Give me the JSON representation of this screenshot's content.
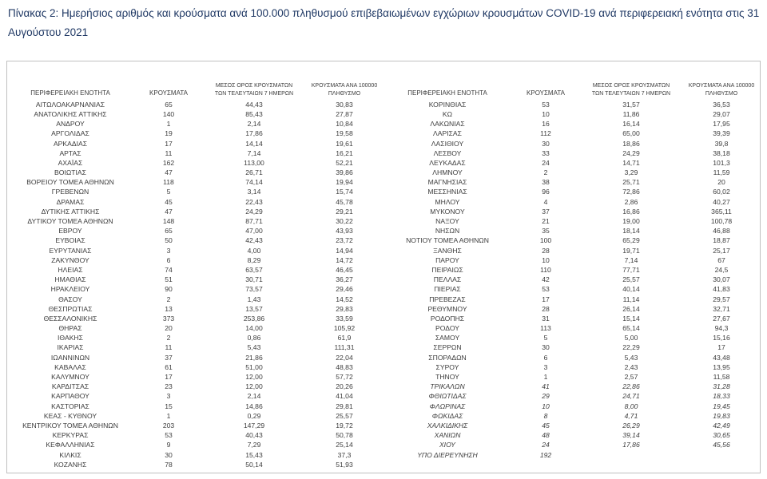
{
  "title": "Πίνακας 2: Ημερήσιος αριθμός και κρούσματα ανά 100.000 πληθυσμού επιβεβαιωμένων εγχώριων κρουσμάτων COVID-19 ανά περιφερειακή ενότητα στις 31 Αυγούστου 2021",
  "table": {
    "headers": {
      "region": "ΠΕΡΙΦΕΡΕΙΑΚΗ ΕΝΟΤΗΤΑ",
      "cases": "ΚΡΟΥΣΜΑΤΑ",
      "avg7_line1": "ΜΕΣΟΣ ΟΡΟΣ ΚΡΟΥΣΜΑΤΩΝ",
      "avg7_line2": "ΤΩΝ ΤΕΛΕΥΤΑΙΩΝ 7 ΗΜΕΡΩΝ",
      "per100k_line1": "ΚΡΟΥΣΜΑΤΑ ΑΝΑ 100000",
      "per100k_line2": "ΠΛΗΘΥΣΜΟ"
    },
    "left_rows": [
      {
        "region": "ΑΙΤΩΛΟΑΚΑΡΝΑΝΙΑΣ",
        "cases": "65",
        "avg7": "44,43",
        "per100k": "30,83"
      },
      {
        "region": "ΑΝΑΤΟΛΙΚΗΣ ΑΤΤΙΚΗΣ",
        "cases": "140",
        "avg7": "85,43",
        "per100k": "27,87"
      },
      {
        "region": "ΑΝΔΡΟΥ",
        "cases": "1",
        "avg7": "2,14",
        "per100k": "10,84"
      },
      {
        "region": "ΑΡΓΟΛΙΔΑΣ",
        "cases": "19",
        "avg7": "17,86",
        "per100k": "19,58"
      },
      {
        "region": "ΑΡΚΑΔΙΑΣ",
        "cases": "17",
        "avg7": "14,14",
        "per100k": "19,61"
      },
      {
        "region": "ΑΡΤΑΣ",
        "cases": "11",
        "avg7": "7,14",
        "per100k": "16,21"
      },
      {
        "region": "ΑΧΑΪΑΣ",
        "cases": "162",
        "avg7": "113,00",
        "per100k": "52,21"
      },
      {
        "region": "ΒΟΙΩΤΙΑΣ",
        "cases": "47",
        "avg7": "26,71",
        "per100k": "39,86"
      },
      {
        "region": "ΒΟΡΕΙΟΥ ΤΟΜΕΑ ΑΘΗΝΩΝ",
        "cases": "118",
        "avg7": "74,14",
        "per100k": "19,94"
      },
      {
        "region": "ΓΡΕΒΕΝΩΝ",
        "cases": "5",
        "avg7": "3,14",
        "per100k": "15,74"
      },
      {
        "region": "ΔΡΑΜΑΣ",
        "cases": "45",
        "avg7": "22,43",
        "per100k": "45,78"
      },
      {
        "region": "ΔΥΤΙΚΗΣ ΑΤΤΙΚΗΣ",
        "cases": "47",
        "avg7": "24,29",
        "per100k": "29,21"
      },
      {
        "region": "ΔΥΤΙΚΟΥ ΤΟΜΕΑ ΑΘΗΝΩΝ",
        "cases": "148",
        "avg7": "87,71",
        "per100k": "30,22"
      },
      {
        "region": "ΕΒΡΟΥ",
        "cases": "65",
        "avg7": "47,00",
        "per100k": "43,93"
      },
      {
        "region": "ΕΥΒΟΙΑΣ",
        "cases": "50",
        "avg7": "42,43",
        "per100k": "23,72"
      },
      {
        "region": "ΕΥΡΥΤΑΝΙΑΣ",
        "cases": "3",
        "avg7": "4,00",
        "per100k": "14,94"
      },
      {
        "region": "ΖΑΚΥΝΘΟΥ",
        "cases": "6",
        "avg7": "8,29",
        "per100k": "14,72"
      },
      {
        "region": "ΗΛΕΙΑΣ",
        "cases": "74",
        "avg7": "63,57",
        "per100k": "46,45"
      },
      {
        "region": "ΗΜΑΘΙΑΣ",
        "cases": "51",
        "avg7": "30,71",
        "per100k": "36,27"
      },
      {
        "region": "ΗΡΑΚΛΕΙΟΥ",
        "cases": "90",
        "avg7": "73,57",
        "per100k": "29,46"
      },
      {
        "region": "ΘΑΣΟΥ",
        "cases": "2",
        "avg7": "1,43",
        "per100k": "14,52"
      },
      {
        "region": "ΘΕΣΠΡΩΤΙΑΣ",
        "cases": "13",
        "avg7": "13,57",
        "per100k": "29,83"
      },
      {
        "region": "ΘΕΣΣΑΛΟΝΙΚΗΣ",
        "cases": "373",
        "avg7": "253,86",
        "per100k": "33,59"
      },
      {
        "region": "ΘΗΡΑΣ",
        "cases": "20",
        "avg7": "14,00",
        "per100k": "105,92"
      },
      {
        "region": "ΙΘΑΚΗΣ",
        "cases": "2",
        "avg7": "0,86",
        "per100k": "61,9"
      },
      {
        "region": "ΙΚΑΡΙΑΣ",
        "cases": "11",
        "avg7": "5,43",
        "per100k": "111,31"
      },
      {
        "region": "ΙΩΑΝΝΙΝΩΝ",
        "cases": "37",
        "avg7": "21,86",
        "per100k": "22,04"
      },
      {
        "region": "ΚΑΒΑΛΑΣ",
        "cases": "61",
        "avg7": "51,00",
        "per100k": "48,83"
      },
      {
        "region": "ΚΑΛΥΜΝΟΥ",
        "cases": "17",
        "avg7": "12,00",
        "per100k": "57,72"
      },
      {
        "region": "ΚΑΡΔΙΤΣΑΣ",
        "cases": "23",
        "avg7": "12,00",
        "per100k": "20,26"
      },
      {
        "region": "ΚΑΡΠΑΘΟΥ",
        "cases": "3",
        "avg7": "2,14",
        "per100k": "41,04"
      },
      {
        "region": "ΚΑΣΤΟΡΙΑΣ",
        "cases": "15",
        "avg7": "14,86",
        "per100k": "29,81"
      },
      {
        "region": "ΚΕΑΣ - ΚΥΘΝΟΥ",
        "cases": "1",
        "avg7": "0,29",
        "per100k": "25,57"
      },
      {
        "region": "ΚΕΝΤΡΙΚΟΥ ΤΟΜΕΑ ΑΘΗΝΩΝ",
        "cases": "203",
        "avg7": "147,29",
        "per100k": "19,72"
      },
      {
        "region": "ΚΕΡΚΥΡΑΣ",
        "cases": "53",
        "avg7": "40,43",
        "per100k": "50,78"
      },
      {
        "region": "ΚΕΦΑΛΛΗΝΙΑΣ",
        "cases": "9",
        "avg7": "7,29",
        "per100k": "25,14"
      },
      {
        "region": "ΚΙΛΚΙΣ",
        "cases": "30",
        "avg7": "15,43",
        "per100k": "37,3"
      },
      {
        "region": "ΚΟΖΑΝΗΣ",
        "cases": "78",
        "avg7": "50,14",
        "per100k": "51,93"
      }
    ],
    "right_rows": [
      {
        "region": "ΚΟΡΙΝΘΙΑΣ",
        "cases": "53",
        "avg7": "31,57",
        "per100k": "36,53"
      },
      {
        "region": "ΚΩ",
        "cases": "10",
        "avg7": "11,86",
        "per100k": "29,07"
      },
      {
        "region": "ΛΑΚΩΝΙΑΣ",
        "cases": "16",
        "avg7": "16,14",
        "per100k": "17,95"
      },
      {
        "region": "ΛΑΡΙΣΑΣ",
        "cases": "112",
        "avg7": "65,00",
        "per100k": "39,39"
      },
      {
        "region": "ΛΑΣΙΘΙΟΥ",
        "cases": "30",
        "avg7": "18,86",
        "per100k": "39,8"
      },
      {
        "region": "ΛΕΣΒΟΥ",
        "cases": "33",
        "avg7": "24,29",
        "per100k": "38,18"
      },
      {
        "region": "ΛΕΥΚΑΔΑΣ",
        "cases": "24",
        "avg7": "14,71",
        "per100k": "101,3"
      },
      {
        "region": "ΛΗΜΝΟΥ",
        "cases": "2",
        "avg7": "3,29",
        "per100k": "11,59"
      },
      {
        "region": "ΜΑΓΝΗΣΙΑΣ",
        "cases": "38",
        "avg7": "25,71",
        "per100k": "20"
      },
      {
        "region": "ΜΕΣΣΗΝΙΑΣ",
        "cases": "96",
        "avg7": "72,86",
        "per100k": "60,02"
      },
      {
        "region": "ΜΗΛΟΥ",
        "cases": "4",
        "avg7": "2,86",
        "per100k": "40,27"
      },
      {
        "region": "ΜΥΚΟΝΟΥ",
        "cases": "37",
        "avg7": "16,86",
        "per100k": "365,11"
      },
      {
        "region": "ΝΑΞΟΥ",
        "cases": "21",
        "avg7": "19,00",
        "per100k": "100,78"
      },
      {
        "region": "ΝΗΣΩΝ",
        "cases": "35",
        "avg7": "18,14",
        "per100k": "46,88"
      },
      {
        "region": "ΝΟΤΙΟΥ ΤΟΜΕΑ ΑΘΗΝΩΝ",
        "cases": "100",
        "avg7": "65,29",
        "per100k": "18,87"
      },
      {
        "region": "ΞΑΝΘΗΣ",
        "cases": "28",
        "avg7": "19,71",
        "per100k": "25,17"
      },
      {
        "region": "ΠΑΡΟΥ",
        "cases": "10",
        "avg7": "7,14",
        "per100k": "67"
      },
      {
        "region": "ΠΕΙΡΑΙΩΣ",
        "cases": "110",
        "avg7": "77,71",
        "per100k": "24,5"
      },
      {
        "region": "ΠΕΛΛΑΣ",
        "cases": "42",
        "avg7": "25,57",
        "per100k": "30,07"
      },
      {
        "region": "ΠΙΕΡΙΑΣ",
        "cases": "53",
        "avg7": "40,14",
        "per100k": "41,83"
      },
      {
        "region": "ΠΡΕΒΕΖΑΣ",
        "cases": "17",
        "avg7": "11,14",
        "per100k": "29,57"
      },
      {
        "region": "ΡΕΘΥΜΝΟΥ",
        "cases": "28",
        "avg7": "26,14",
        "per100k": "32,71"
      },
      {
        "region": "ΡΟΔΟΠΗΣ",
        "cases": "31",
        "avg7": "15,14",
        "per100k": "27,67"
      },
      {
        "region": "ΡΟΔΟΥ",
        "cases": "113",
        "avg7": "65,14",
        "per100k": "94,3"
      },
      {
        "region": "ΣΑΜΟΥ",
        "cases": "5",
        "avg7": "5,00",
        "per100k": "15,16"
      },
      {
        "region": "ΣΕΡΡΩΝ",
        "cases": "30",
        "avg7": "22,29",
        "per100k": "17"
      },
      {
        "region": "ΣΠΟΡΑΔΩΝ",
        "cases": "6",
        "avg7": "5,43",
        "per100k": "43,48"
      },
      {
        "region": "ΣΥΡΟΥ",
        "cases": "3",
        "avg7": "2,43",
        "per100k": "13,95"
      },
      {
        "region": "ΤΗΝΟΥ",
        "cases": "1",
        "avg7": "2,57",
        "per100k": "11,58"
      },
      {
        "region": "ΤΡΙΚΑΛΩΝ",
        "cases": "41",
        "avg7": "22,86",
        "per100k": "31,28",
        "italic": true
      },
      {
        "region": "ΦΘΙΩΤΙΔΑΣ",
        "cases": "29",
        "avg7": "24,71",
        "per100k": "18,33",
        "italic": true
      },
      {
        "region": "ΦΛΩΡΙΝΑΣ",
        "cases": "10",
        "avg7": "8,00",
        "per100k": "19,45",
        "italic": true
      },
      {
        "region": "ΦΩΚΙΔΑΣ",
        "cases": "8",
        "avg7": "4,71",
        "per100k": "19,83",
        "italic": true
      },
      {
        "region": "ΧΑΛΚΙΔΙΚΗΣ",
        "cases": "45",
        "avg7": "26,29",
        "per100k": "42,49",
        "italic": true
      },
      {
        "region": "ΧΑΝΙΩΝ",
        "cases": "48",
        "avg7": "39,14",
        "per100k": "30,65",
        "italic": true
      },
      {
        "region": "ΧΙΟΥ",
        "cases": "24",
        "avg7": "17,86",
        "per100k": "45,56",
        "italic": true
      },
      {
        "region": "ΥΠΟ ΔΙΕΡΕΥΝΗΣΗ",
        "cases": "192",
        "avg7": "",
        "per100k": "",
        "italic": true
      }
    ]
  }
}
